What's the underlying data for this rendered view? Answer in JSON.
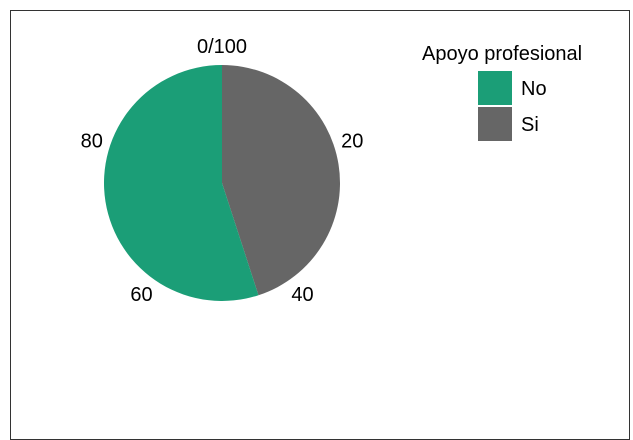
{
  "chart_data": {
    "type": "pie",
    "title": "",
    "legend": {
      "title": "Apoyo profesional",
      "position": "right",
      "entries": [
        {
          "label": "No",
          "color": "#1b9e77"
        },
        {
          "label": "Si",
          "color": "#666666"
        }
      ]
    },
    "slices": [
      {
        "label": "No",
        "value": 55,
        "color": "#1b9e77"
      },
      {
        "label": "Si",
        "value": 45,
        "color": "#666666"
      }
    ],
    "axis": {
      "range": [
        0,
        100
      ],
      "ticks": [
        {
          "value": 0,
          "label": "0/100"
        },
        {
          "value": 20,
          "label": "20"
        },
        {
          "value": 40,
          "label": "40"
        },
        {
          "value": 60,
          "label": "60"
        },
        {
          "value": 80,
          "label": "80"
        }
      ]
    }
  }
}
